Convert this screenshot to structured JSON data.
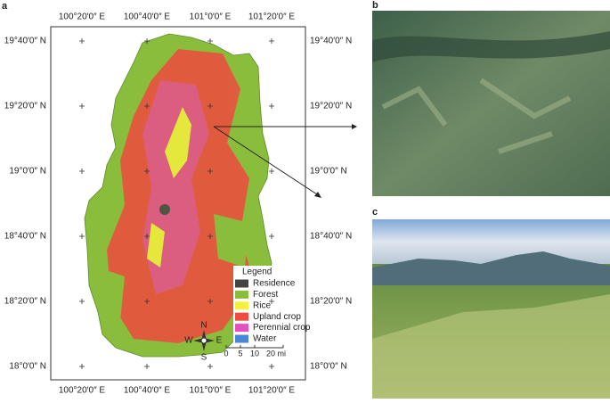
{
  "panels": {
    "a": "a",
    "b": "b",
    "c": "c"
  },
  "map": {
    "lon_labels": [
      "100°20′0″ E",
      "100°40′0″ E",
      "101°0′0″ E",
      "101°20′0″ E"
    ],
    "lat_labels": [
      "19°40′0″ N",
      "19°20′0″ N",
      "19°0′0″ N",
      "18°40′0″ N",
      "18°20′0″ N",
      "18°0′0″ N"
    ],
    "legend": {
      "title": "Legend",
      "items": [
        {
          "label": "Residence",
          "color": "#444444"
        },
        {
          "label": "Forest",
          "color": "#8bbd3c"
        },
        {
          "label": "Rice",
          "color": "#f4f03c"
        },
        {
          "label": "Upland crop",
          "color": "#ef4b3f"
        },
        {
          "label": "Perennial crop",
          "color": "#e64fc2"
        },
        {
          "label": "Water",
          "color": "#4a86d8"
        }
      ]
    },
    "compass": {
      "n": "N",
      "s": "S",
      "e": "E",
      "w": "W"
    },
    "scale": [
      "0",
      "5",
      "10",
      "20 mi"
    ]
  }
}
